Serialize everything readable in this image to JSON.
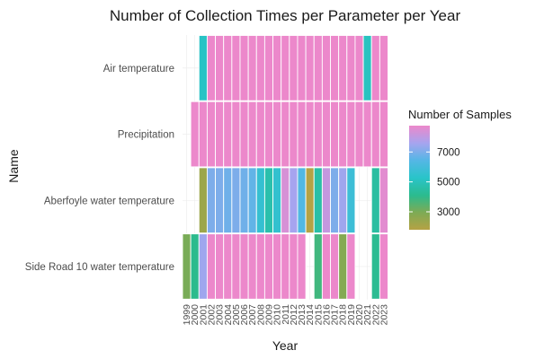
{
  "chart_data": {
    "type": "heatmap",
    "title": "Number of Collection Times per Parameter per Year",
    "xlabel": "Year",
    "ylabel": "Name",
    "x": [
      "1999",
      "2000",
      "2001",
      "2002",
      "2003",
      "2004",
      "2005",
      "2006",
      "2007",
      "2008",
      "2009",
      "2010",
      "2011",
      "2012",
      "2013",
      "2014",
      "2015",
      "2016",
      "2017",
      "2018",
      "2019",
      "2020",
      "2021",
      "2022",
      "2023"
    ],
    "y": [
      "Air temperature",
      "Precipitation",
      "Aberfoyle water temperature",
      "Side Road 10 water temperature"
    ],
    "values": [
      [
        null,
        null,
        5200,
        8760,
        8760,
        8760,
        8760,
        8760,
        8760,
        8760,
        8760,
        8760,
        8760,
        8760,
        8760,
        8760,
        8760,
        8760,
        8760,
        8760,
        8760,
        8760,
        5100,
        8760,
        8760
      ],
      [
        null,
        8760,
        8760,
        8760,
        8760,
        8760,
        8760,
        8760,
        8760,
        8760,
        8760,
        8760,
        8760,
        8760,
        8760,
        8760,
        8760,
        8760,
        8760,
        8760,
        8760,
        8760,
        8760,
        8760,
        8760
      ],
      [
        null,
        null,
        2300,
        7000,
        7000,
        6800,
        7000,
        6800,
        6600,
        5600,
        4700,
        5500,
        8400,
        7600,
        6300,
        1800,
        4600,
        8100,
        7000,
        7500,
        5800,
        null,
        null,
        4500,
        8600
      ],
      [
        3000,
        4100,
        7500,
        8760,
        8760,
        8760,
        8760,
        8760,
        8760,
        8760,
        8760,
        8760,
        8760,
        8760,
        8760,
        null,
        3800,
        8760,
        8760,
        2800,
        8760,
        null,
        null,
        4200,
        8760
      ]
    ],
    "legend": {
      "title": "Number of Samples",
      "ticks": [
        3000,
        5000,
        7000
      ],
      "range": [
        1800,
        8760
      ],
      "colors": [
        "#b5a244",
        "#7cab55",
        "#2bbb8e",
        "#29c4c9",
        "#56b6e6",
        "#a6a4ef",
        "#ec88cb"
      ]
    },
    "grid": true,
    "legend_position": "right"
  }
}
